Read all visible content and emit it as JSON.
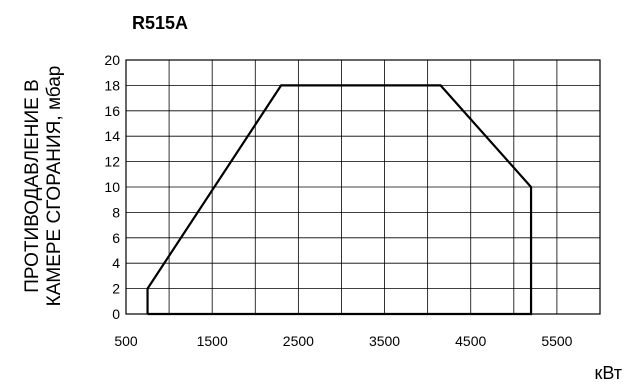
{
  "chart_data": {
    "type": "line",
    "title": "R515A",
    "ylabel_lines": [
      "ПРОТИВОДАВЛЕНИЕ В",
      "КАМЕРЕ СГОРАНИЯ, мбар"
    ],
    "xlabel": "кВт",
    "xlim": [
      500,
      6000
    ],
    "ylim": [
      0,
      20
    ],
    "x_tick_labels": [
      500,
      1500,
      2500,
      3500,
      4500,
      5500
    ],
    "y_tick_labels": [
      0,
      2,
      4,
      6,
      8,
      10,
      12,
      14,
      16,
      18,
      20
    ],
    "x_grid": [
      500,
      1000,
      1500,
      2000,
      2500,
      3000,
      3500,
      4000,
      4500,
      5000,
      5500,
      6000
    ],
    "y_grid": [
      0,
      2,
      4,
      6,
      8,
      10,
      12,
      14,
      16,
      18,
      20
    ],
    "grid": true,
    "series": [
      {
        "x": [
          750,
          750,
          2300,
          4150,
          5200,
          5200,
          750
        ],
        "y": [
          0,
          2,
          18,
          18,
          10,
          0,
          0
        ]
      }
    ]
  }
}
